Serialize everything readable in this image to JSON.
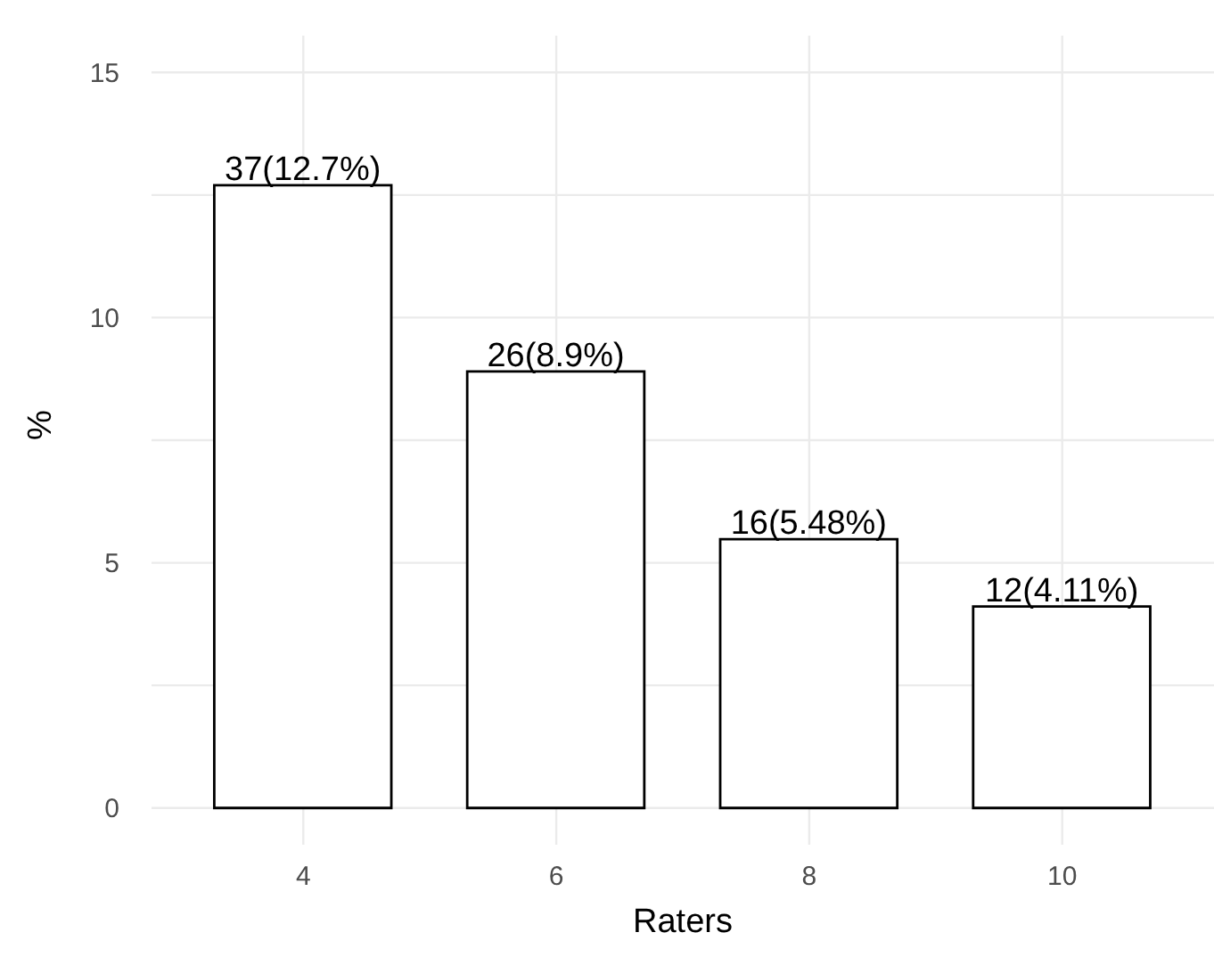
{
  "chart_data": {
    "type": "bar",
    "xlabel": "Raters",
    "ylabel": "%",
    "x": [
      4,
      6,
      8,
      10
    ],
    "values": [
      12.7,
      8.9,
      5.48,
      4.11
    ],
    "value_labels": [
      "37(12.7%)",
      "26(8.9%)",
      "16(5.48%)",
      "12(4.11%)"
    ],
    "color": "#ffffff",
    "xlim": [
      2.8,
      11.2
    ],
    "xticks": [
      4,
      6,
      8,
      10
    ],
    "ylim": [
      -0.75,
      15.75
    ],
    "yticks": [
      0,
      {
        "value": 2.5,
        "label": null
      },
      5,
      {
        "value": 7.5,
        "label": null
      },
      10,
      {
        "value": 12.5,
        "label": null
      },
      15
    ],
    "grid": true
  }
}
